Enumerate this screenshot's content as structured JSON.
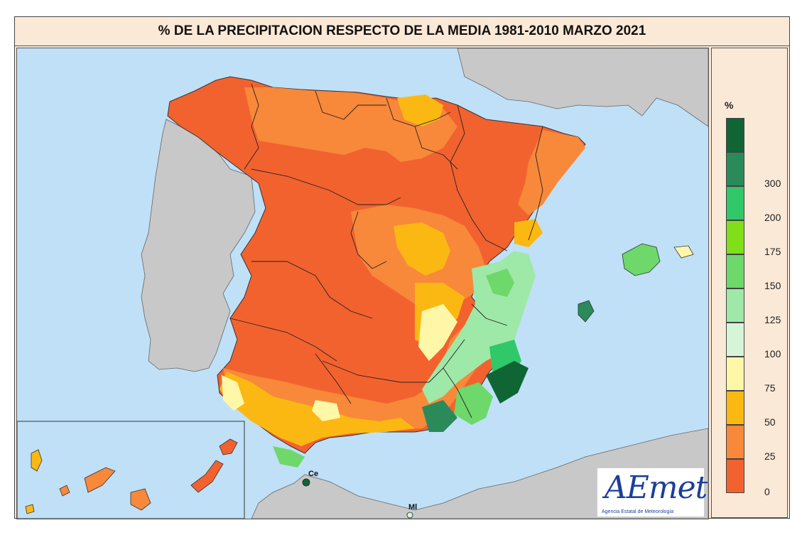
{
  "title": "% DE LA PRECIPITACION RESPECTO DE LA MEDIA 1981-2010 MARZO 2021",
  "legend": {
    "unit": "%",
    "classes": [
      {
        "label": "0",
        "color": "#f2622f"
      },
      {
        "label": "25",
        "color": "#f8883a"
      },
      {
        "label": "50",
        "color": "#fbb813"
      },
      {
        "label": "75",
        "color": "#fff7a8"
      },
      {
        "label": "100",
        "color": "#d6f5d8"
      },
      {
        "label": "125",
        "color": "#9ee8a8"
      },
      {
        "label": "150",
        "color": "#6ed86a"
      },
      {
        "label": "175",
        "color": "#7fe01a"
      },
      {
        "label": "200",
        "color": "#30c868"
      },
      {
        "label": "300",
        "color": "#2b8a5a"
      },
      {
        "label": "",
        "color": "#0f6534"
      }
    ],
    "tick_labels": [
      "0",
      "25",
      "50",
      "75",
      "100",
      "125",
      "150",
      "175",
      "200",
      "300"
    ]
  },
  "places": {
    "ceuta": "Ce",
    "melilla": "Ml"
  },
  "logo": {
    "text": "AEmet",
    "subtitle": "Agencia Estatal de Meteorología"
  },
  "colors": {
    "sea": "#bfe0f7",
    "land_outside": "#c8c8c8",
    "frame_bg": "#fbe9d7"
  }
}
